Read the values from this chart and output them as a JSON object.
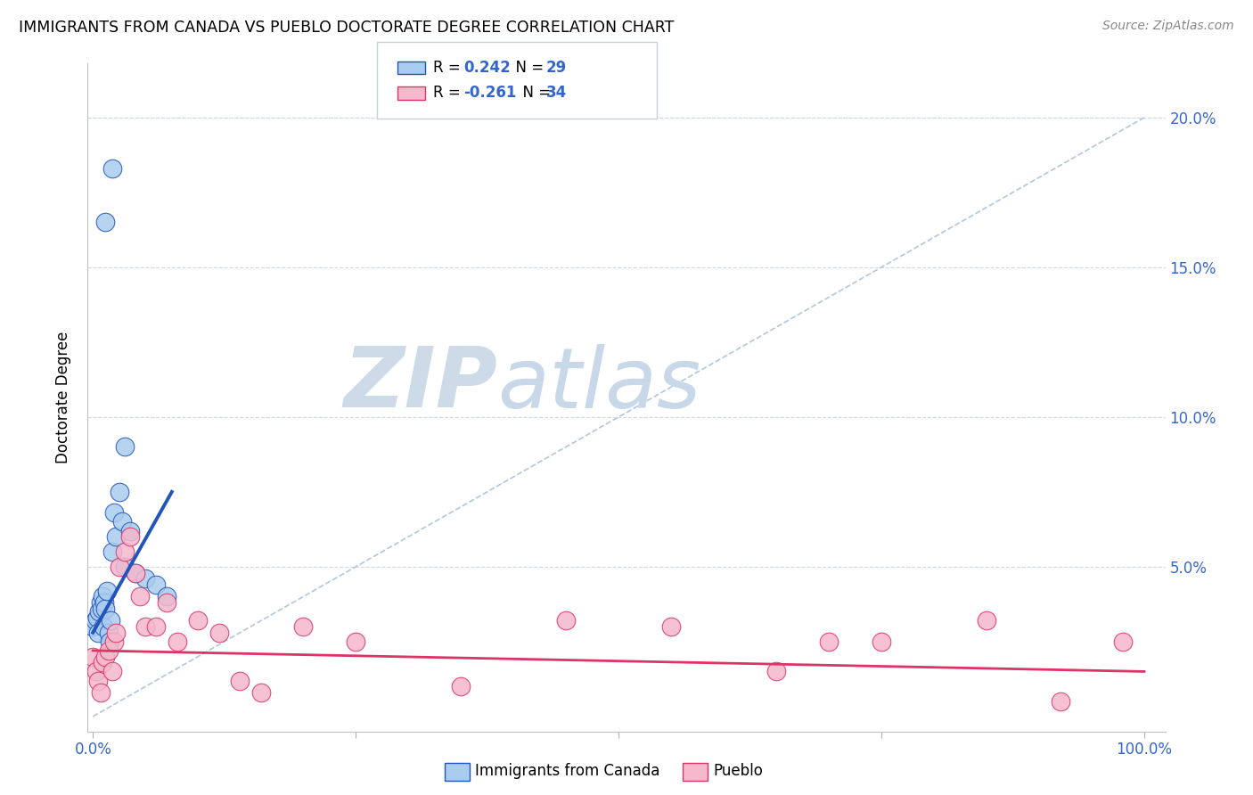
{
  "title": "IMMIGRANTS FROM CANADA VS PUEBLO DOCTORATE DEGREE CORRELATION CHART",
  "source": "Source: ZipAtlas.com",
  "ylabel": "Doctorate Degree",
  "y_ticks": [
    0.0,
    0.05,
    0.1,
    0.15,
    0.2
  ],
  "y_tick_labels": [
    "",
    "5.0%",
    "10.0%",
    "15.0%",
    "20.0%"
  ],
  "x_lim": [
    -0.005,
    1.02
  ],
  "y_lim": [
    -0.005,
    0.218
  ],
  "blue_scatter_x": [
    0.0,
    0.002,
    0.004,
    0.005,
    0.006,
    0.007,
    0.008,
    0.009,
    0.01,
    0.011,
    0.012,
    0.013,
    0.015,
    0.016,
    0.017,
    0.018,
    0.02,
    0.022,
    0.025,
    0.028,
    0.03,
    0.035,
    0.04,
    0.05,
    0.06,
    0.07,
    0.03,
    0.012,
    0.018
  ],
  "blue_scatter_y": [
    0.03,
    0.032,
    0.033,
    0.028,
    0.035,
    0.038,
    0.036,
    0.04,
    0.03,
    0.038,
    0.036,
    0.042,
    0.028,
    0.025,
    0.032,
    0.055,
    0.068,
    0.06,
    0.075,
    0.065,
    0.05,
    0.062,
    0.048,
    0.046,
    0.044,
    0.04,
    0.09,
    0.165,
    0.183
  ],
  "pink_scatter_x": [
    0.0,
    0.003,
    0.005,
    0.007,
    0.009,
    0.012,
    0.015,
    0.018,
    0.02,
    0.022,
    0.025,
    0.03,
    0.035,
    0.04,
    0.045,
    0.05,
    0.06,
    0.07,
    0.08,
    0.1,
    0.12,
    0.14,
    0.16,
    0.2,
    0.25,
    0.35,
    0.45,
    0.55,
    0.65,
    0.7,
    0.75,
    0.85,
    0.92,
    0.98
  ],
  "pink_scatter_y": [
    0.02,
    0.015,
    0.012,
    0.008,
    0.018,
    0.02,
    0.022,
    0.015,
    0.025,
    0.028,
    0.05,
    0.055,
    0.06,
    0.048,
    0.04,
    0.03,
    0.03,
    0.038,
    0.025,
    0.032,
    0.028,
    0.012,
    0.008,
    0.03,
    0.025,
    0.01,
    0.032,
    0.03,
    0.015,
    0.025,
    0.025,
    0.032,
    0.005,
    0.025
  ],
  "blue_line_color": "#2255bb",
  "pink_line_color": "#dd3366",
  "dashed_line_color": "#b0c8dc",
  "blue_fill_color": "#aaccee",
  "pink_fill_color": "#f5b8cc",
  "watermark_zip": "ZIP",
  "watermark_atlas": "atlas",
  "watermark_color": "#cddbe8",
  "background_color": "#ffffff",
  "grid_color": "#d0d8e4",
  "legend_R1": "0.242",
  "legend_N1": "29",
  "legend_R2": "-0.261",
  "legend_N2": "34",
  "blue_line_x": [
    0.0,
    0.075
  ],
  "blue_line_y_start": 0.028,
  "blue_line_y_end": 0.075,
  "pink_line_x": [
    0.0,
    1.0
  ],
  "pink_line_y_start": 0.022,
  "pink_line_y_end": 0.015
}
